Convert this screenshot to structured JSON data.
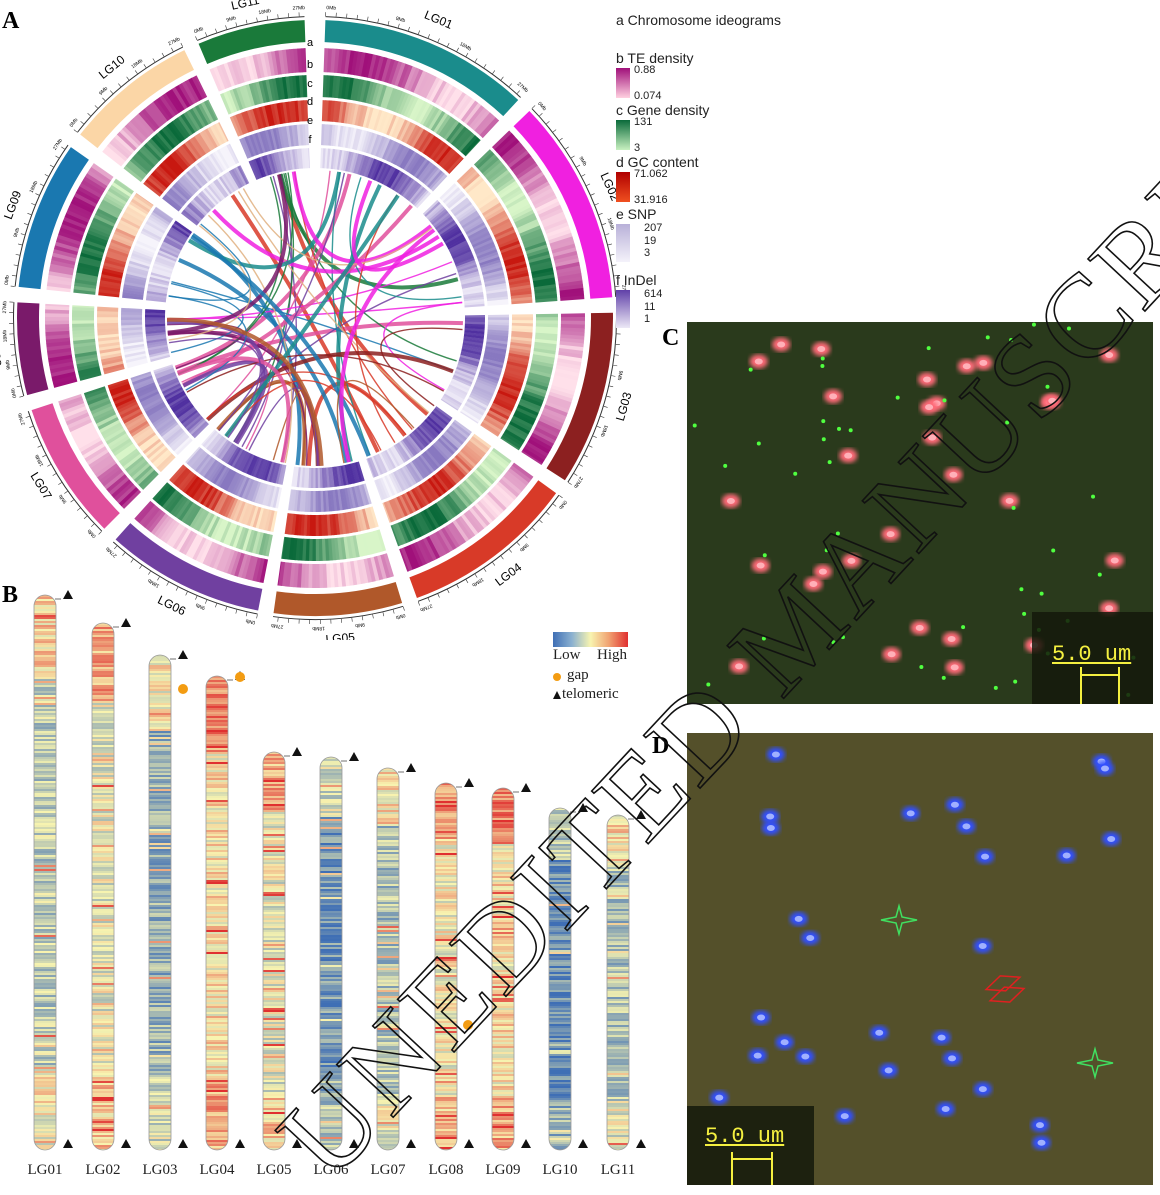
{
  "panels": {
    "A": "A",
    "B": "B",
    "C": "C",
    "D": "D"
  },
  "circos": {
    "track_letters": [
      "a",
      "b",
      "c",
      "d",
      "e",
      "f"
    ],
    "chromosomes": [
      {
        "name": "LG01",
        "color": "#1a8c8c",
        "start": 2,
        "end": 43
      },
      {
        "name": "LG02",
        "color": "#f020e0",
        "start": 46,
        "end": 86
      },
      {
        "name": "LG03",
        "color": "#8c2020",
        "start": 89,
        "end": 123
      },
      {
        "name": "LG04",
        "color": "#d83a28",
        "start": 126,
        "end": 160
      },
      {
        "name": "LG05",
        "color": "#b0582a",
        "start": 163,
        "end": 188
      },
      {
        "name": "LG06",
        "color": "#7040a0",
        "start": 191,
        "end": 222
      },
      {
        "name": "LG07",
        "color": "#e0509c",
        "start": 225,
        "end": 252
      },
      {
        "name": "LG08",
        "color": "#7a1a6a",
        "start": 255,
        "end": 273
      },
      {
        "name": "LG09",
        "color": "#1a78b0",
        "start": 276,
        "end": 305
      },
      {
        "name": "LG10",
        "color": "#fbd6a6",
        "start": 308,
        "end": 334
      },
      {
        "name": "LG11",
        "color": "#1a7a3a",
        "start": 337,
        "end": 358
      }
    ],
    "tick_labels": [
      "0Mb",
      "9Mb",
      "18Mb",
      "27Mb"
    ]
  },
  "legend": {
    "a": "a Chromosome ideograms",
    "b": {
      "title": "b TE density",
      "max": "0.88",
      "min": "0.074",
      "color": "#a0107a"
    },
    "c": {
      "title": "c Gene density",
      "max": "131",
      "min": "3",
      "color": "#0a6a3a"
    },
    "d": {
      "title": "d GC content",
      "max": "71.062",
      "min": "31.916",
      "color": "#c01010"
    },
    "e": {
      "title": "e SNP",
      "v1": "207",
      "v2": "19",
      "v3": "3",
      "color": "#b8b0d8"
    },
    "f": {
      "title": "f InDel",
      "v1": "614",
      "v2": "11",
      "v3": "1",
      "color": "#6040a8"
    }
  },
  "panelB": {
    "scale_low": "Low",
    "scale_high": "High",
    "gap_label": "gap",
    "telomeric_label": "telomeric",
    "gap_color": "#f39c12",
    "chromosomes": [
      "LG01",
      "LG02",
      "LG03",
      "LG04",
      "LG05",
      "LG06",
      "LG07",
      "LG08",
      "LG09",
      "LG10",
      "LG11"
    ]
  },
  "panelC": {
    "scale_bar": "5.0 um"
  },
  "panelD": {
    "scale_bar": "5.0 um"
  },
  "watermark": "UNEDITED MANUSCRIPT"
}
